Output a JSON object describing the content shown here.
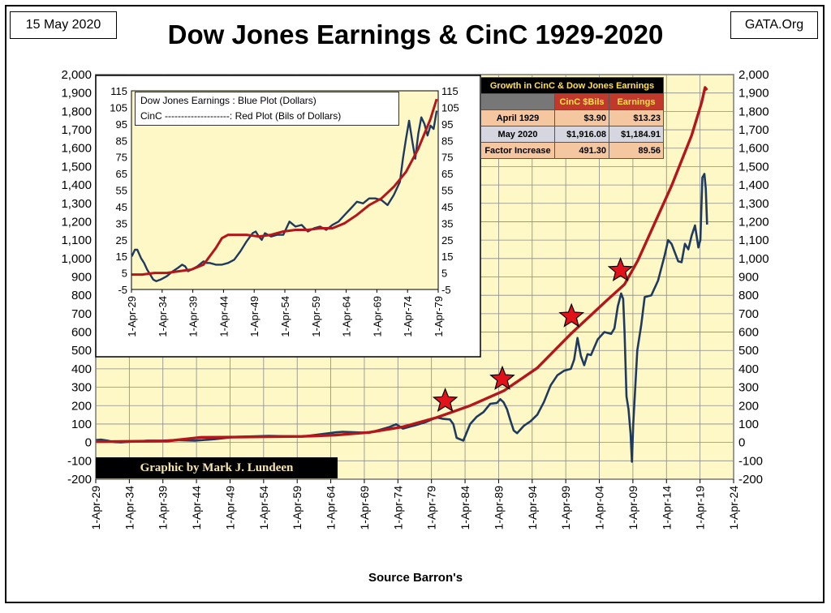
{
  "header": {
    "date": "15 May 2020",
    "site": "GATA.Org",
    "title": "Dow Jones Earnings & CinC 1929-2020"
  },
  "footer": {
    "source": "Source Barron's"
  },
  "byline": "Graphic by Mark J. Lundeen",
  "colors": {
    "plot_bg": "#fdf8c6",
    "earnings": "#1f3a5f",
    "cinc": "#b3171b",
    "star": "#e2121b"
  },
  "growth_table": {
    "title": "Growth in CinC & Dow Jones Earnings",
    "col_cinc": "CinC $Bils",
    "col_earnings": "Earnings",
    "rows": [
      {
        "label": "April 1929",
        "cinc": "$3.90",
        "earnings": "$13.23"
      },
      {
        "label": "May 2020",
        "cinc": "$1,916.08",
        "earnings": "$1,184.91"
      },
      {
        "label": "Factor Increase",
        "cinc": "491.30",
        "earnings": "89.56"
      }
    ]
  },
  "inset_legend": {
    "line1": "Dow Jones Earnings : Blue Plot (Dollars)",
    "line2": "CinC --------------------: Red Plot (Bils of Dollars)"
  },
  "chart_data": [
    {
      "type": "line",
      "title": "Dow Jones Earnings & CinC 1929-2020",
      "xlabel": "Source Barron's",
      "x_ticks": [
        "1-Apr-29",
        "1-Apr-34",
        "1-Apr-39",
        "1-Apr-44",
        "1-Apr-49",
        "1-Apr-54",
        "1-Apr-59",
        "1-Apr-64",
        "1-Apr-69",
        "1-Apr-74",
        "1-Apr-79",
        "1-Apr-84",
        "1-Apr-89",
        "1-Apr-94",
        "1-Apr-99",
        "1-Apr-04",
        "1-Apr-09",
        "1-Apr-14",
        "1-Apr-19",
        "1-Apr-24"
      ],
      "y_ticks": [
        "2,000",
        "1,900",
        "1,800",
        "1,700",
        "1,600",
        "1,500",
        "1,400",
        "1,300",
        "1,200",
        "1,100",
        "1,000",
        "900",
        "800",
        "700",
        "600",
        "500",
        "400",
        "300",
        "200",
        "100",
        "0",
        "-100",
        "-200"
      ],
      "xlim": [
        1929.25,
        2024.25
      ],
      "ylim": [
        -200,
        2000
      ],
      "grid": true,
      "series": [
        {
          "name": "Dow Jones Earnings",
          "x": [
            1929.3,
            1930,
            1931,
            1932,
            1933,
            1935,
            1937,
            1939,
            1941,
            1944,
            1947,
            1950,
            1955,
            1960,
            1965,
            1966,
            1970,
            1973,
            1974,
            1975,
            1977,
            1978.5,
            1979,
            1980,
            1981,
            1982,
            1982.5,
            1983,
            1984,
            1985,
            1986,
            1987,
            1988,
            1989,
            1989.5,
            1990,
            1990.5,
            1991,
            1991.5,
            1992,
            1993,
            1994,
            1995,
            1996,
            1997,
            1998,
            1999,
            2000,
            2000.5,
            2001,
            2001.5,
            2002,
            2002.5,
            2003,
            2004,
            2005,
            2006,
            2006.5,
            2007,
            2007.5,
            2007.8,
            2008,
            2008.3,
            2008.6,
            2008.9,
            2009.1,
            2009.3,
            2009.6,
            2009.9,
            2010.5,
            2011,
            2012,
            2013,
            2014,
            2014.5,
            2015,
            2016,
            2016.5,
            2017,
            2017.5,
            2018,
            2018.5,
            2019,
            2019.3,
            2019.6,
            2019.9,
            2020.1,
            2020.3
          ],
          "y": [
            13,
            15,
            10,
            2,
            0,
            5,
            10,
            9,
            13,
            10,
            18,
            30,
            36,
            32,
            55,
            58,
            52,
            84,
            99,
            75,
            95,
            112,
            120,
            136,
            128,
            125,
            100,
            25,
            10,
            100,
            140,
            165,
            210,
            215,
            235,
            218,
            180,
            120,
            65,
            50,
            90,
            115,
            150,
            220,
            310,
            365,
            390,
            400,
            450,
            568,
            470,
            420,
            480,
            475,
            560,
            600,
            590,
            620,
            740,
            810,
            780,
            600,
            250,
            180,
            50,
            -105,
            100,
            300,
            500,
            640,
            790,
            800,
            880,
            1020,
            1100,
            1080,
            985,
            980,
            1080,
            1050,
            1125,
            1180,
            1060,
            1100,
            1440,
            1460,
            1380,
            1185
          ]
        },
        {
          "name": "CinC",
          "x": [
            1929.3,
            1933,
            1940,
            1945,
            1950,
            1955,
            1960,
            1965,
            1970,
            1975,
            1980,
            1985,
            1990,
            1995,
            2000,
            2005,
            2008,
            2010,
            2015,
            2018,
            2019,
            2019.5,
            2020,
            2020.3
          ],
          "y": [
            4,
            5,
            8,
            28,
            29,
            31,
            33,
            40,
            55,
            85,
            135,
            200,
            280,
            405,
            590,
            760,
            860,
            990,
            1395,
            1670,
            1790,
            1850,
            1930,
            1916
          ]
        }
      ],
      "annotations": [
        {
          "type": "star",
          "x": 1981.3,
          "y": 225
        },
        {
          "type": "star",
          "x": 1989.8,
          "y": 345
        },
        {
          "type": "star",
          "x": 2000.1,
          "y": 685
        },
        {
          "type": "star",
          "x": 2007.4,
          "y": 935
        }
      ]
    },
    {
      "type": "line",
      "x_ticks": [
        "1-Apr-29",
        "1-Apr-34",
        "1-Apr-39",
        "1-Apr-44",
        "1-Apr-49",
        "1-Apr-54",
        "1-Apr-59",
        "1-Apr-64",
        "1-Apr-69",
        "1-Apr-74",
        "1-Apr-79"
      ],
      "y_ticks": [
        "115",
        "105",
        "95",
        "85",
        "75",
        "65",
        "55",
        "45",
        "35",
        "25",
        "15",
        "5",
        "-5"
      ],
      "xlim": [
        1929.25,
        1979.25
      ],
      "ylim": [
        -5,
        115
      ],
      "grid": false,
      "series": [
        {
          "name": "Dow Jones Earnings",
          "x": [
            1929.3,
            1929.8,
            1930.2,
            1930.8,
            1931.3,
            1931.8,
            1932.3,
            1932.8,
            1933.3,
            1934,
            1935,
            1936,
            1936.8,
            1937.5,
            1938,
            1938.5,
            1939,
            1940,
            1941,
            1941.5,
            1942,
            1943,
            1944,
            1945,
            1946,
            1947,
            1948,
            1949,
            1949.5,
            1950,
            1950.5,
            1951,
            1952,
            1953,
            1954,
            1955,
            1956,
            1957,
            1958,
            1959,
            1960,
            1961,
            1962,
            1963,
            1964,
            1965,
            1966,
            1967,
            1968,
            1969,
            1970,
            1971,
            1972,
            1973,
            1973.5,
            1974,
            1974.5,
            1975,
            1975.5,
            1976,
            1976.5,
            1977,
            1977.5,
            1978,
            1978.5,
            1979
          ],
          "y": [
            15,
            19,
            19,
            14,
            11,
            7,
            4,
            1,
            0,
            1,
            3,
            6,
            8,
            10,
            9,
            6,
            7,
            9,
            12,
            11,
            11,
            10,
            10,
            11,
            13,
            18,
            24,
            29,
            30,
            27,
            25,
            29,
            27,
            28,
            28,
            36,
            33,
            34,
            30,
            32,
            33,
            31,
            34,
            36,
            40,
            44,
            48,
            47,
            50,
            50,
            49,
            46,
            52,
            60,
            74,
            86,
            97,
            85,
            74,
            89,
            99,
            95,
            88,
            94,
            92,
            103
          ]
        },
        {
          "name": "CinC",
          "x": [
            1929.3,
            1931,
            1933,
            1935,
            1937,
            1939,
            1941,
            1943,
            1944,
            1945,
            1946,
            1948,
            1950,
            1952,
            1954,
            1956,
            1958,
            1960,
            1962,
            1964,
            1966,
            1968,
            1970,
            1972,
            1974,
            1976,
            1978,
            1979
          ],
          "y": [
            4,
            4,
            5,
            5,
            6,
            7,
            10,
            20,
            26,
            28,
            28,
            28,
            27,
            28,
            30,
            31,
            31,
            32,
            32,
            35,
            40,
            46,
            50,
            57,
            66,
            80,
            98,
            110
          ]
        }
      ]
    }
  ]
}
